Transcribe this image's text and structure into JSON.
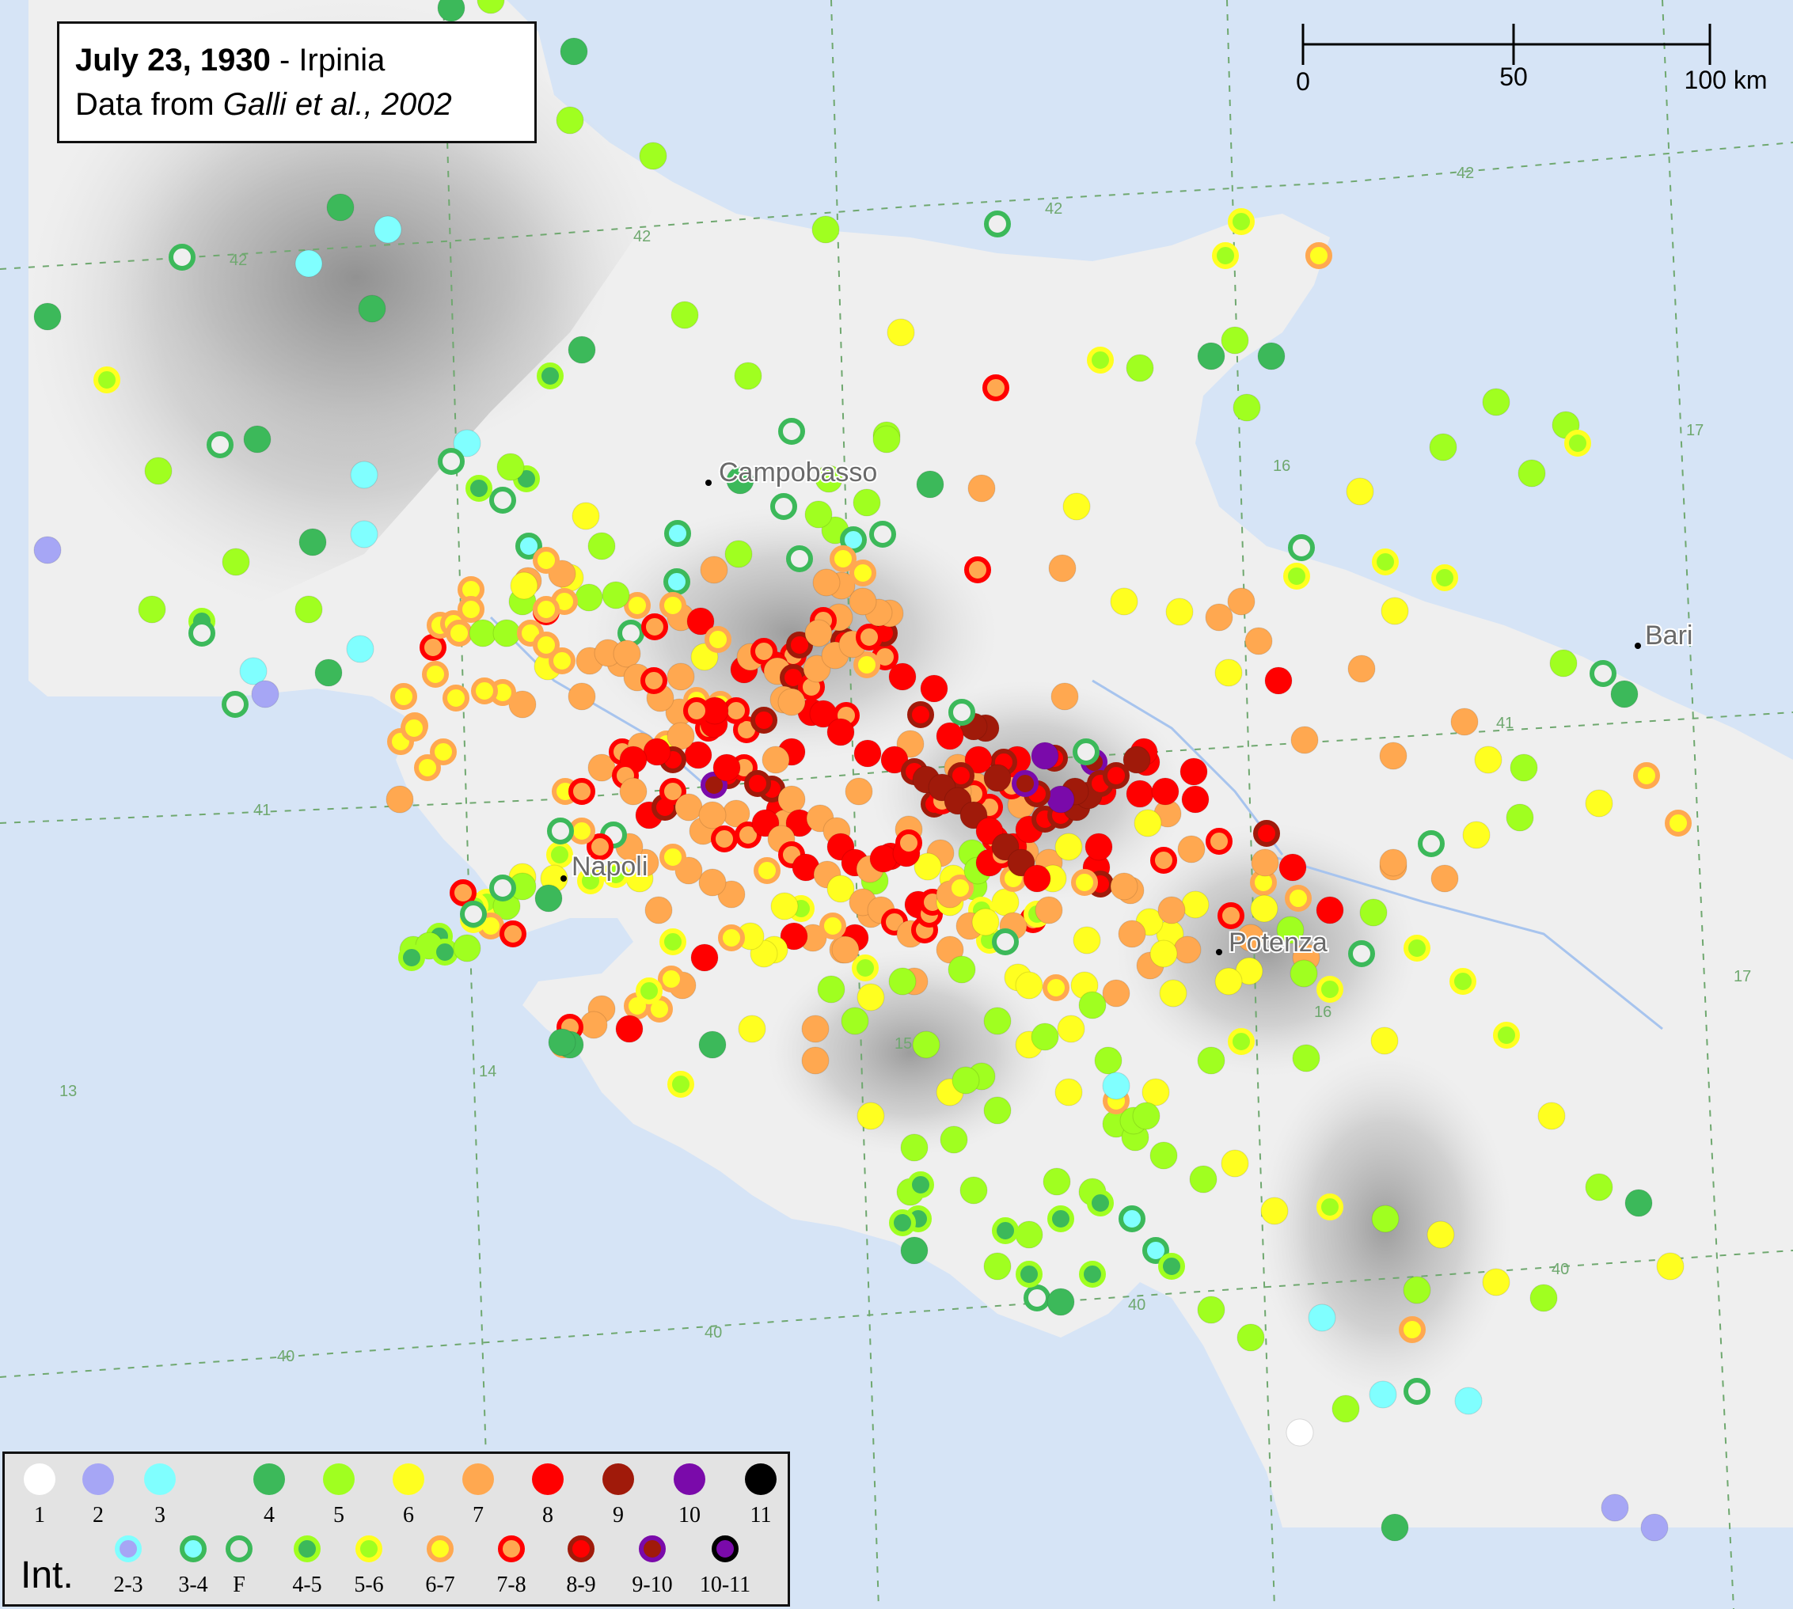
{
  "title": {
    "date": "July 23, 1930",
    "separator": " - ",
    "place": "Irpinia",
    "source_prefix": "Data from ",
    "source_authors": "Galli et al., 2002"
  },
  "scale_bar": {
    "labels": [
      "0",
      "50",
      "100 km"
    ]
  },
  "cities": [
    {
      "name": "Campobasso"
    },
    {
      "name": "Napoli"
    },
    {
      "name": "Potenza"
    },
    {
      "name": "Bari"
    }
  ],
  "grid_labels": [
    "42",
    "42",
    "42",
    "42",
    "17",
    "16",
    "41",
    "41",
    "15",
    "14",
    "13",
    "16",
    "17",
    "40",
    "40",
    "40",
    "40"
  ],
  "legend": {
    "int_label": "Int.",
    "row1": [
      {
        "label": "1",
        "fill": "#ffffff",
        "ring": "#ffffff"
      },
      {
        "label": "2",
        "fill": "#a6a6f5",
        "ring": "#a6a6f5"
      },
      {
        "label": "3",
        "fill": "#80ffff",
        "ring": "#80ffff"
      },
      {
        "label": "4",
        "fill": "#3cb95a",
        "ring": "#3cb95a"
      },
      {
        "label": "5",
        "fill": "#a0ff20",
        "ring": "#a0ff20"
      },
      {
        "label": "6",
        "fill": "#ffff20",
        "ring": "#ffff20"
      },
      {
        "label": "7",
        "fill": "#ffa850",
        "ring": "#ffa850"
      },
      {
        "label": "8",
        "fill": "#ff0000",
        "ring": "#ff0000"
      },
      {
        "label": "9",
        "fill": "#a01a0a",
        "ring": "#a01a0a"
      },
      {
        "label": "10",
        "fill": "#7a0aaa",
        "ring": "#7a0aaa"
      },
      {
        "label": "11",
        "fill": "#000000",
        "ring": "#000000"
      }
    ],
    "row2": [
      {
        "label": "2-3",
        "fill": "#a6a6f5",
        "ring": "#80ffff"
      },
      {
        "label": "3-4",
        "fill": "#80ffff",
        "ring": "#3cb95a"
      },
      {
        "label": "F",
        "fill": "#e3e3e3",
        "ring": "#3cb95a"
      },
      {
        "label": "4-5",
        "fill": "#3cb95a",
        "ring": "#a0ff20"
      },
      {
        "label": "5-6",
        "fill": "#a0ff20",
        "ring": "#ffff20"
      },
      {
        "label": "6-7",
        "fill": "#ffff20",
        "ring": "#ffa850"
      },
      {
        "label": "7-8",
        "fill": "#ffa850",
        "ring": "#ff0000"
      },
      {
        "label": "8-9",
        "fill": "#ff0000",
        "ring": "#a01a0a"
      },
      {
        "label": "9-10",
        "fill": "#a01a0a",
        "ring": "#7a0aaa"
      },
      {
        "label": "10-11",
        "fill": "#7a0aaa",
        "ring": "#000000"
      }
    ]
  },
  "colors": {
    "sea": "#d6e4f6",
    "land": "#efefef",
    "relief": "#9a9a9a",
    "grid": "#6fa86f",
    "river": "#a7c4ee"
  }
}
